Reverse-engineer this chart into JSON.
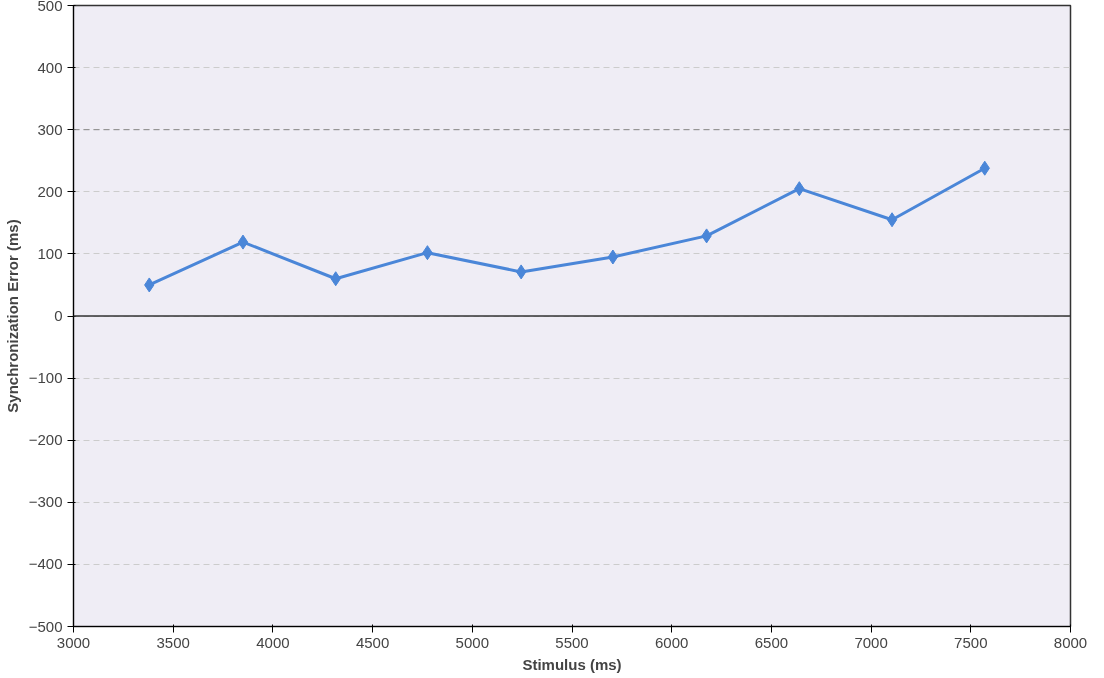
{
  "chart_data": {
    "type": "line",
    "xlabel": "Stimulus (ms)",
    "ylabel": "Synchronization Error (ms)",
    "x": [
      3380,
      3850,
      4315,
      4775,
      5245,
      5705,
      6175,
      6640,
      7105,
      7570
    ],
    "series": [
      {
        "color": "#4a86d8",
        "values": [
          50,
          119,
          60,
          102,
          71,
          95,
          129,
          205,
          155,
          238
        ]
      }
    ],
    "xlim": [
      3000,
      8000
    ],
    "xticks": [
      3000,
      3500,
      4000,
      4500,
      5000,
      5500,
      6000,
      6500,
      7000,
      7500,
      8000
    ],
    "ylim": [
      -500,
      500
    ],
    "yticks": [
      -500,
      -400,
      -300,
      -200,
      -100,
      0,
      100,
      200,
      300,
      400,
      500
    ],
    "grid": "y",
    "marker": "diamond",
    "line_style": "solid",
    "ref_lines": [
      {
        "axis": "y",
        "value": 0,
        "color": "#333333",
        "line_style": "solid"
      },
      {
        "axis": "y",
        "value": 300,
        "color": "#888888",
        "line_style": "dashed"
      }
    ]
  }
}
